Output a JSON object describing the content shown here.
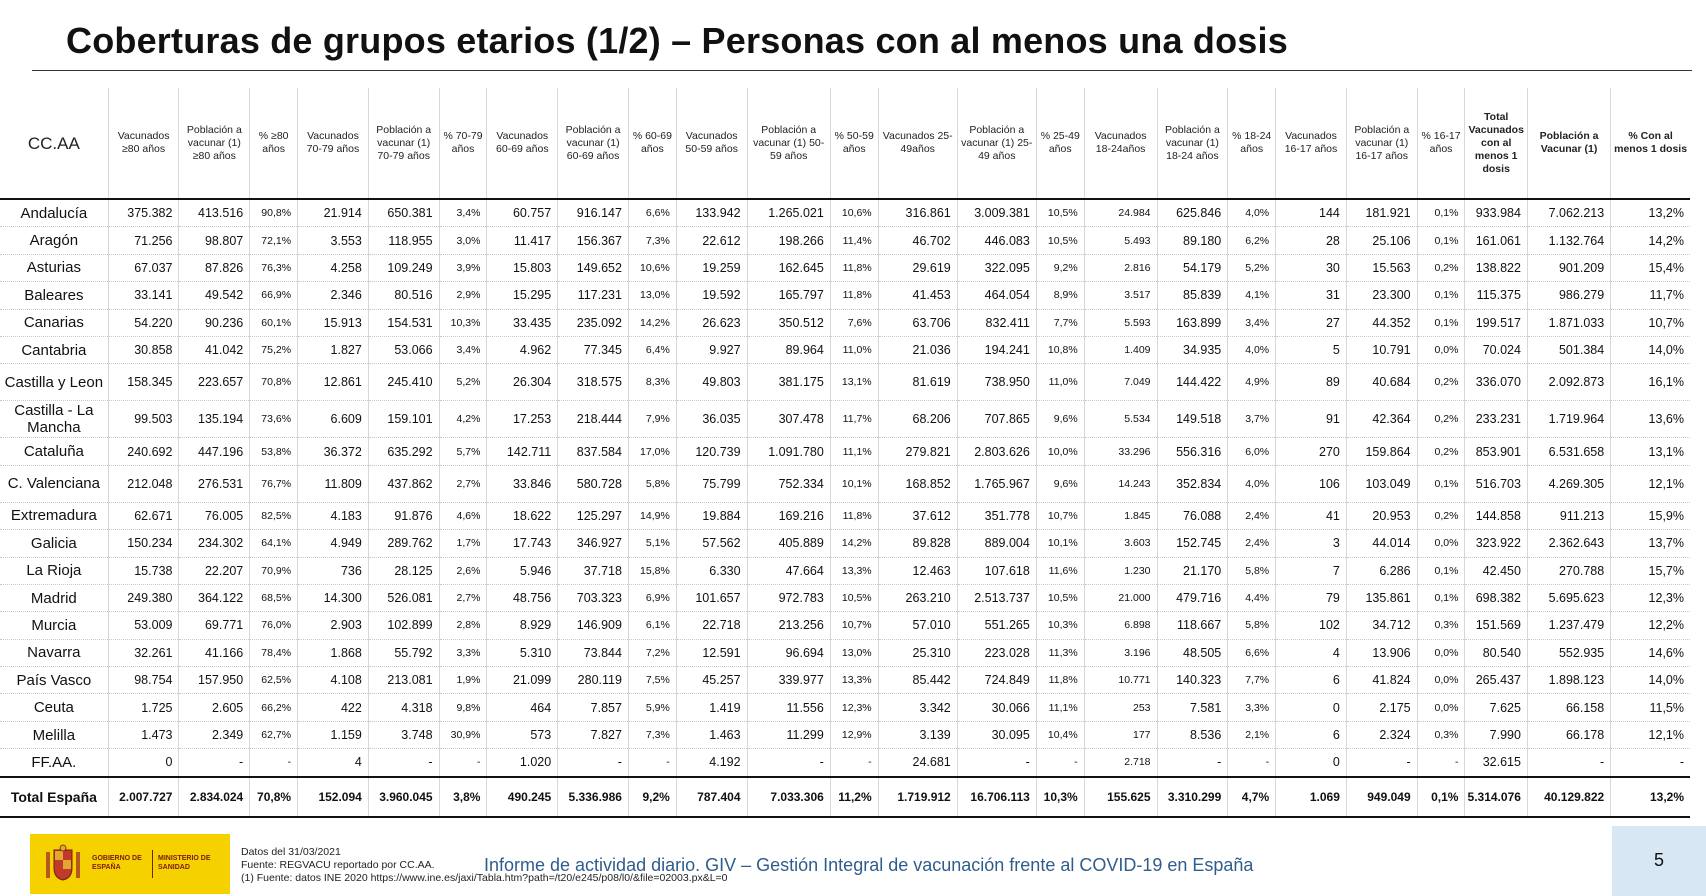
{
  "title": "Coberturas de grupos etarios (1/2) – Personas con al menos una dosis",
  "headers": [
    "CC.AA",
    "Vacunados ≥80 años",
    "Población a vacunar (1) ≥80 años",
    "% ≥80 años",
    "Vacunados 70-79 años",
    "Población a vacunar (1) 70-79 años",
    "% 70-79 años",
    "Vacunados 60-69 años",
    "Población a vacunar (1) 60-69 años",
    "% 60-69 años",
    "Vacunados 50-59 años",
    "Población a vacunar (1) 50-59 años",
    "% 50-59 años",
    "Vacunados 25-49años",
    "Población a vacunar (1) 25-49 años",
    "% 25-49 años",
    "Vacunados 18-24años",
    "Población a vacunar (1) 18-24 años",
    "% 18-24 años",
    "Vacunados 16-17 años",
    "Población a vacunar (1) 16-17 años",
    "% 16-17 años",
    "Total Vacunados con al menos 1 dosis",
    "Población a Vacunar (1)",
    "% Con al menos 1 dosis"
  ],
  "rows": [
    [
      "Andalucía",
      "375.382",
      "413.516",
      "90,8%",
      "21.914",
      "650.381",
      "3,4%",
      "60.757",
      "916.147",
      "6,6%",
      "133.942",
      "1.265.021",
      "10,6%",
      "316.861",
      "3.009.381",
      "10,5%",
      "24.984",
      "625.846",
      "4,0%",
      "144",
      "181.921",
      "0,1%",
      "933.984",
      "7.062.213",
      "13,2%"
    ],
    [
      "Aragón",
      "71.256",
      "98.807",
      "72,1%",
      "3.553",
      "118.955",
      "3,0%",
      "11.417",
      "156.367",
      "7,3%",
      "22.612",
      "198.266",
      "11,4%",
      "46.702",
      "446.083",
      "10,5%",
      "5.493",
      "89.180",
      "6,2%",
      "28",
      "25.106",
      "0,1%",
      "161.061",
      "1.132.764",
      "14,2%"
    ],
    [
      "Asturias",
      "67.037",
      "87.826",
      "76,3%",
      "4.258",
      "109.249",
      "3,9%",
      "15.803",
      "149.652",
      "10,6%",
      "19.259",
      "162.645",
      "11,8%",
      "29.619",
      "322.095",
      "9,2%",
      "2.816",
      "54.179",
      "5,2%",
      "30",
      "15.563",
      "0,2%",
      "138.822",
      "901.209",
      "15,4%"
    ],
    [
      "Baleares",
      "33.141",
      "49.542",
      "66,9%",
      "2.346",
      "80.516",
      "2,9%",
      "15.295",
      "117.231",
      "13,0%",
      "19.592",
      "165.797",
      "11,8%",
      "41.453",
      "464.054",
      "8,9%",
      "3.517",
      "85.839",
      "4,1%",
      "31",
      "23.300",
      "0,1%",
      "115.375",
      "986.279",
      "11,7%"
    ],
    [
      "Canarias",
      "54.220",
      "90.236",
      "60,1%",
      "15.913",
      "154.531",
      "10,3%",
      "33.435",
      "235.092",
      "14,2%",
      "26.623",
      "350.512",
      "7,6%",
      "63.706",
      "832.411",
      "7,7%",
      "5.593",
      "163.899",
      "3,4%",
      "27",
      "44.352",
      "0,1%",
      "199.517",
      "1.871.033",
      "10,7%"
    ],
    [
      "Cantabria",
      "30.858",
      "41.042",
      "75,2%",
      "1.827",
      "53.066",
      "3,4%",
      "4.962",
      "77.345",
      "6,4%",
      "9.927",
      "89.964",
      "11,0%",
      "21.036",
      "194.241",
      "10,8%",
      "1.409",
      "34.935",
      "4,0%",
      "5",
      "10.791",
      "0,0%",
      "70.024",
      "501.384",
      "14,0%"
    ],
    [
      "Castilla y Leon",
      "158.345",
      "223.657",
      "70,8%",
      "12.861",
      "245.410",
      "5,2%",
      "26.304",
      "318.575",
      "8,3%",
      "49.803",
      "381.175",
      "13,1%",
      "81.619",
      "738.950",
      "11,0%",
      "7.049",
      "144.422",
      "4,9%",
      "89",
      "40.684",
      "0,2%",
      "336.070",
      "2.092.873",
      "16,1%"
    ],
    [
      "Castilla - La Mancha",
      "99.503",
      "135.194",
      "73,6%",
      "6.609",
      "159.101",
      "4,2%",
      "17.253",
      "218.444",
      "7,9%",
      "36.035",
      "307.478",
      "11,7%",
      "68.206",
      "707.865",
      "9,6%",
      "5.534",
      "149.518",
      "3,7%",
      "91",
      "42.364",
      "0,2%",
      "233.231",
      "1.719.964",
      "13,6%"
    ],
    [
      "Cataluña",
      "240.692",
      "447.196",
      "53,8%",
      "36.372",
      "635.292",
      "5,7%",
      "142.711",
      "837.584",
      "17,0%",
      "120.739",
      "1.091.780",
      "11,1%",
      "279.821",
      "2.803.626",
      "10,0%",
      "33.296",
      "556.316",
      "6,0%",
      "270",
      "159.864",
      "0,2%",
      "853.901",
      "6.531.658",
      "13,1%"
    ],
    [
      "C. Valenciana",
      "212.048",
      "276.531",
      "76,7%",
      "11.809",
      "437.862",
      "2,7%",
      "33.846",
      "580.728",
      "5,8%",
      "75.799",
      "752.334",
      "10,1%",
      "168.852",
      "1.765.967",
      "9,6%",
      "14.243",
      "352.834",
      "4,0%",
      "106",
      "103.049",
      "0,1%",
      "516.703",
      "4.269.305",
      "12,1%"
    ],
    [
      "Extremadura",
      "62.671",
      "76.005",
      "82,5%",
      "4.183",
      "91.876",
      "4,6%",
      "18.622",
      "125.297",
      "14,9%",
      "19.884",
      "169.216",
      "11,8%",
      "37.612",
      "351.778",
      "10,7%",
      "1.845",
      "76.088",
      "2,4%",
      "41",
      "20.953",
      "0,2%",
      "144.858",
      "911.213",
      "15,9%"
    ],
    [
      "Galicia",
      "150.234",
      "234.302",
      "64,1%",
      "4.949",
      "289.762",
      "1,7%",
      "17.743",
      "346.927",
      "5,1%",
      "57.562",
      "405.889",
      "14,2%",
      "89.828",
      "889.004",
      "10,1%",
      "3.603",
      "152.745",
      "2,4%",
      "3",
      "44.014",
      "0,0%",
      "323.922",
      "2.362.643",
      "13,7%"
    ],
    [
      "La Rioja",
      "15.738",
      "22.207",
      "70,9%",
      "736",
      "28.125",
      "2,6%",
      "5.946",
      "37.718",
      "15,8%",
      "6.330",
      "47.664",
      "13,3%",
      "12.463",
      "107.618",
      "11,6%",
      "1.230",
      "21.170",
      "5,8%",
      "7",
      "6.286",
      "0,1%",
      "42.450",
      "270.788",
      "15,7%"
    ],
    [
      "Madrid",
      "249.380",
      "364.122",
      "68,5%",
      "14.300",
      "526.081",
      "2,7%",
      "48.756",
      "703.323",
      "6,9%",
      "101.657",
      "972.783",
      "10,5%",
      "263.210",
      "2.513.737",
      "10,5%",
      "21.000",
      "479.716",
      "4,4%",
      "79",
      "135.861",
      "0,1%",
      "698.382",
      "5.695.623",
      "12,3%"
    ],
    [
      "Murcia",
      "53.009",
      "69.771",
      "76,0%",
      "2.903",
      "102.899",
      "2,8%",
      "8.929",
      "146.909",
      "6,1%",
      "22.718",
      "213.256",
      "10,7%",
      "57.010",
      "551.265",
      "10,3%",
      "6.898",
      "118.667",
      "5,8%",
      "102",
      "34.712",
      "0,3%",
      "151.569",
      "1.237.479",
      "12,2%"
    ],
    [
      "Navarra",
      "32.261",
      "41.166",
      "78,4%",
      "1.868",
      "55.792",
      "3,3%",
      "5.310",
      "73.844",
      "7,2%",
      "12.591",
      "96.694",
      "13,0%",
      "25.310",
      "223.028",
      "11,3%",
      "3.196",
      "48.505",
      "6,6%",
      "4",
      "13.906",
      "0,0%",
      "80.540",
      "552.935",
      "14,6%"
    ],
    [
      "País Vasco",
      "98.754",
      "157.950",
      "62,5%",
      "4.108",
      "213.081",
      "1,9%",
      "21.099",
      "280.119",
      "7,5%",
      "45.257",
      "339.977",
      "13,3%",
      "85.442",
      "724.849",
      "11,8%",
      "10.771",
      "140.323",
      "7,7%",
      "6",
      "41.824",
      "0,0%",
      "265.437",
      "1.898.123",
      "14,0%"
    ],
    [
      "Ceuta",
      "1.725",
      "2.605",
      "66,2%",
      "422",
      "4.318",
      "9,8%",
      "464",
      "7.857",
      "5,9%",
      "1.419",
      "11.556",
      "12,3%",
      "3.342",
      "30.066",
      "11,1%",
      "253",
      "7.581",
      "3,3%",
      "0",
      "2.175",
      "0,0%",
      "7.625",
      "66.158",
      "11,5%"
    ],
    [
      "Melilla",
      "1.473",
      "2.349",
      "62,7%",
      "1.159",
      "3.748",
      "30,9%",
      "573",
      "7.827",
      "7,3%",
      "1.463",
      "11.299",
      "12,9%",
      "3.139",
      "30.095",
      "10,4%",
      "177",
      "8.536",
      "2,1%",
      "6",
      "2.324",
      "0,3%",
      "7.990",
      "66.178",
      "12,1%"
    ],
    [
      "FF.AA.",
      "0",
      "-",
      "-",
      "4",
      "-",
      "-",
      "1.020",
      "-",
      "-",
      "4.192",
      "-",
      "-",
      "24.681",
      "-",
      "-",
      "2.718",
      "-",
      "-",
      "0",
      "-",
      "-",
      "32.615",
      "-",
      "-"
    ]
  ],
  "total_row": [
    "Total España",
    "2.007.727",
    "2.834.024",
    "70,8%",
    "152.094",
    "3.960.045",
    "3,8%",
    "490.245",
    "5.336.986",
    "9,2%",
    "787.404",
    "7.033.306",
    "11,2%",
    "1.719.912",
    "16.706.113",
    "10,3%",
    "155.625",
    "3.310.299",
    "4,7%",
    "1.069",
    "949.049",
    "0,1%",
    "5.314.076",
    "40.129.822",
    "13,2%"
  ],
  "footer": {
    "logo_gov": "GOBIERNO DE ESPAÑA",
    "logo_ministry": "MINISTERIO DE SANIDAD",
    "date": "Datos del 31/03/2021",
    "source": "Fuente: REGVACU reportado por CC.AA.",
    "note": "(1) Fuente: datos INE 2020 https://www.ine.es/jaxi/Tabla.htm?path=/t20/e245/p08/l0/&file=02003.px&L=0",
    "report": "Informe de actividad diario. GIV – Gestión Integral de vacunación frente al COVID-19 en España",
    "page": "5"
  },
  "colors": {
    "logo_bg": "#f5d100",
    "report_text": "#2f5d8c",
    "page_box": "#d7e8f4"
  }
}
